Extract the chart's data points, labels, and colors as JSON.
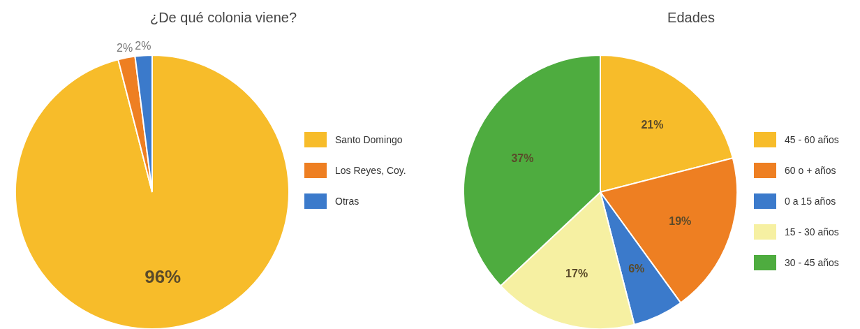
{
  "chart_data": [
    {
      "type": "pie",
      "title": "¿De qué colonia viene?",
      "categories": [
        "Santo Domingo",
        "Los Reyes, Coy.",
        "Otras"
      ],
      "values": [
        96,
        2,
        2
      ],
      "colors": [
        "#f7bc2a",
        "#ee7f22",
        "#3b7acb"
      ],
      "value_labels": [
        "96%",
        "2%",
        "2%"
      ],
      "legend": "right"
    },
    {
      "type": "pie",
      "title": "Edades",
      "categories": [
        "45 - 60 años",
        "60 o + años",
        "0 a 15 años",
        "15 - 30 años",
        "30 - 45 años"
      ],
      "values": [
        21,
        19,
        6,
        17,
        37
      ],
      "colors": [
        "#f7bc2a",
        "#ee7f22",
        "#3b7acb",
        "#f6f0a2",
        "#4eac3f"
      ],
      "value_labels": [
        "21%",
        "19%",
        "6%",
        "17%",
        "37%"
      ],
      "legend": "right"
    }
  ]
}
